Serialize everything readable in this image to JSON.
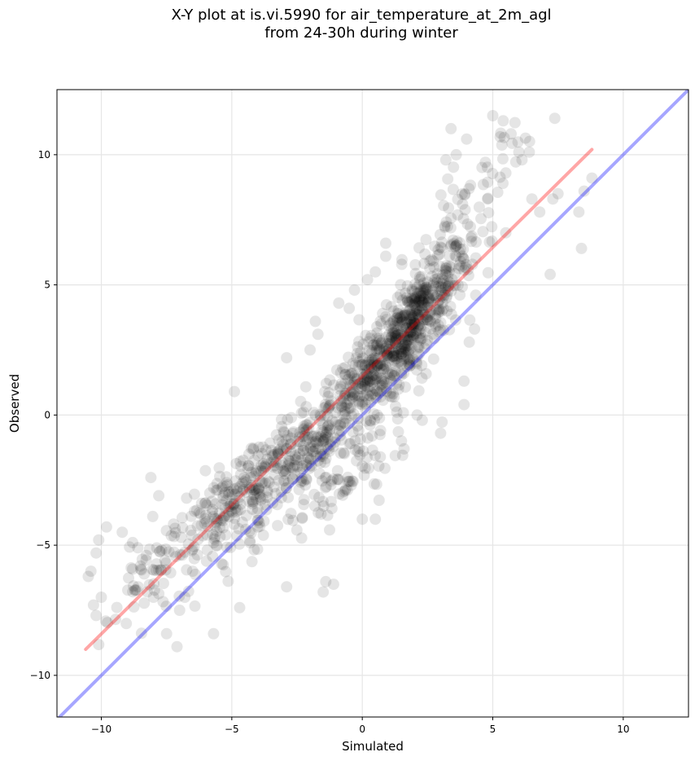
{
  "chart_data": {
    "type": "scatter",
    "title_line1": "X-Y plot at is.vi.5990 for air_temperature_at_2m_agl",
    "title_line2": "from 24-30h during winter",
    "xlabel": "Simulated",
    "ylabel": "Observed",
    "xlim": [
      -11.7,
      12.5
    ],
    "ylim": [
      -11.6,
      12.5
    ],
    "xticks": [
      -10,
      -5,
      0,
      5,
      10
    ],
    "yticks": [
      -10,
      -5,
      0,
      5,
      10
    ],
    "xtick_labels": [
      "−10",
      "−5",
      "0",
      "5",
      "10"
    ],
    "ytick_labels": [
      "−10",
      "−5",
      "0",
      "5",
      "10"
    ],
    "grid": true,
    "point_color": "#000000",
    "point_alpha": 0.1,
    "reference_line": {
      "color": "#0000ff",
      "x": [
        -11.7,
        12.5
      ],
      "y": [
        -11.7,
        12.5
      ]
    },
    "fit_line": {
      "color": "#ff0000",
      "x": [
        -10.6,
        8.8
      ],
      "y": [
        -9.0,
        10.2
      ]
    },
    "clusters": [
      {
        "cx": 2.1,
        "cy": 4.0,
        "sx": 1.0,
        "sy": 1.2,
        "n": 320
      },
      {
        "cx": 0.4,
        "cy": 1.8,
        "sx": 1.2,
        "sy": 1.3,
        "n": 180
      },
      {
        "cx": 1.5,
        "cy": 2.0,
        "sx": 1.1,
        "sy": 1.5,
        "n": 130
      },
      {
        "cx": -2.0,
        "cy": -1.2,
        "sx": 1.6,
        "sy": 1.6,
        "n": 260
      },
      {
        "cx": -4.5,
        "cy": -3.0,
        "sx": 1.4,
        "sy": 1.6,
        "n": 200
      },
      {
        "cx": 3.8,
        "cy": 7.5,
        "sx": 1.3,
        "sy": 1.8,
        "n": 90
      },
      {
        "cx": -7.5,
        "cy": -5.5,
        "sx": 1.3,
        "sy": 1.4,
        "n": 80
      },
      {
        "cx": -0.8,
        "cy": -2.8,
        "sx": 1.3,
        "sy": 1.1,
        "n": 70
      }
    ],
    "points": [
      [
        -10.4,
        -6.0
      ],
      [
        -10.5,
        -6.2
      ],
      [
        -10.2,
        -5.3
      ],
      [
        -10.1,
        -4.8
      ],
      [
        -10.3,
        -7.3
      ],
      [
        -10.2,
        -7.7
      ],
      [
        -10.0,
        -7.0
      ],
      [
        -9.8,
        -4.3
      ],
      [
        -9.2,
        -4.5
      ],
      [
        -8.8,
        -4.9
      ],
      [
        -8.5,
        -5.8
      ],
      [
        -7.5,
        -8.4
      ],
      [
        -7.1,
        -8.9
      ],
      [
        -5.7,
        -8.4
      ],
      [
        -7.0,
        -7.5
      ],
      [
        -8.0,
        -7.0
      ],
      [
        -8.6,
        -5.1
      ],
      [
        -8.1,
        -2.4
      ],
      [
        -7.8,
        -3.1
      ],
      [
        -6.5,
        -6.0
      ],
      [
        -6.8,
        -7.0
      ],
      [
        -4.9,
        0.9
      ],
      [
        -4.7,
        -7.4
      ],
      [
        -2.9,
        2.2
      ],
      [
        -2.9,
        -6.6
      ],
      [
        -1.4,
        -6.4
      ],
      [
        -1.1,
        -6.5
      ],
      [
        -1.5,
        -6.8
      ],
      [
        0.0,
        -4.0
      ],
      [
        0.5,
        -4.0
      ],
      [
        5.0,
        11.5
      ],
      [
        5.4,
        11.3
      ],
      [
        5.7,
        10.8
      ],
      [
        6.0,
        10.1
      ],
      [
        6.4,
        10.1
      ],
      [
        3.4,
        11.0
      ],
      [
        3.6,
        10.0
      ],
      [
        3.2,
        9.8
      ],
      [
        4.0,
        10.6
      ],
      [
        7.3,
        8.3
      ],
      [
        7.5,
        8.5
      ],
      [
        8.5,
        8.6
      ],
      [
        8.8,
        9.1
      ],
      [
        8.3,
        7.8
      ],
      [
        8.4,
        6.4
      ],
      [
        7.2,
        5.4
      ],
      [
        6.5,
        8.3
      ],
      [
        6.8,
        7.8
      ],
      [
        5.5,
        7.0
      ],
      [
        4.8,
        8.3
      ],
      [
        3.9,
        1.3
      ],
      [
        3.9,
        0.4
      ],
      [
        3.0,
        -0.7
      ],
      [
        4.1,
        2.8
      ],
      [
        4.3,
        3.3
      ],
      [
        0.7,
        -0.6
      ],
      [
        1.5,
        -1.0
      ],
      [
        1.6,
        -1.3
      ],
      [
        2.1,
        0.0
      ],
      [
        2.3,
        -0.2
      ],
      [
        -0.9,
        4.3
      ],
      [
        -0.5,
        4.1
      ],
      [
        -1.7,
        3.1
      ],
      [
        -1.8,
        3.6
      ],
      [
        -2.0,
        2.5
      ],
      [
        -0.3,
        4.8
      ],
      [
        0.2,
        5.2
      ],
      [
        0.5,
        5.5
      ],
      [
        0.9,
        6.1
      ],
      [
        0.9,
        6.6
      ]
    ]
  }
}
